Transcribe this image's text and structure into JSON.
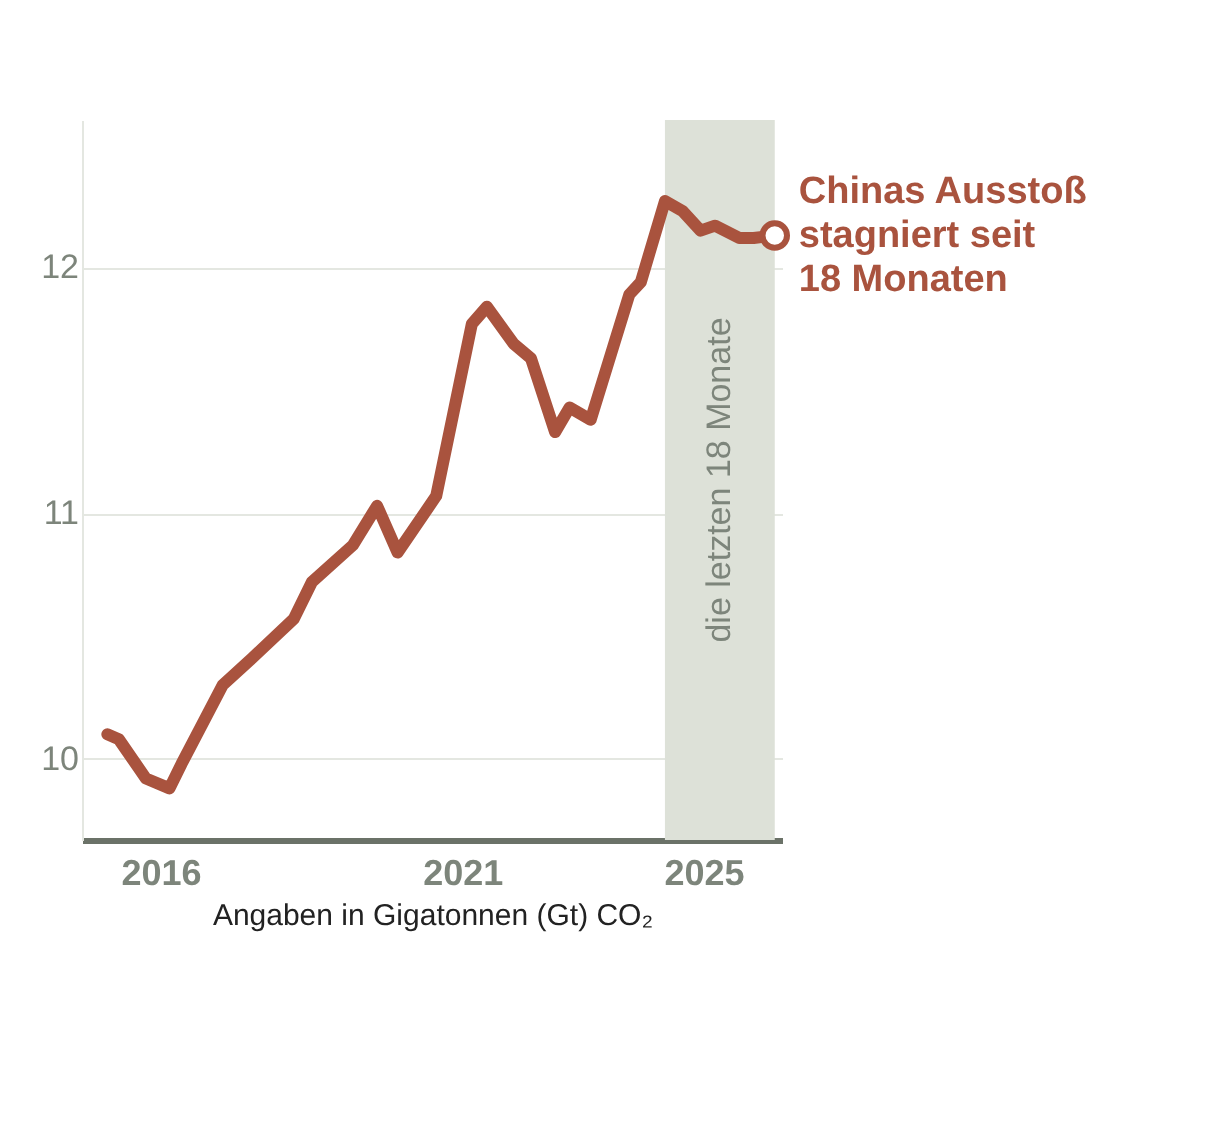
{
  "chart_data": {
    "type": "line",
    "xlabel": "Angaben in Gigatonnen (Gt) CO₂",
    "x": [
      2015.12,
      2015.31,
      2015.76,
      2016.15,
      2016.35,
      2017.03,
      2017.52,
      2018.21,
      2018.51,
      2019.19,
      2019.59,
      2019.93,
      2020.57,
      2021.16,
      2021.41,
      2021.85,
      2022.14,
      2022.54,
      2022.78,
      2023.13,
      2023.77,
      2023.96,
      2024.36,
      2024.65,
      2024.95,
      2025.19,
      2025.59,
      2025.83,
      2026.18
    ],
    "series": [
      {
        "color": "#a9533e",
        "values": [
          10.1,
          10.08,
          9.92,
          9.88,
          9.98,
          10.3,
          10.41,
          10.57,
          10.72,
          10.87,
          11.03,
          10.84,
          11.07,
          11.77,
          11.84,
          11.69,
          11.63,
          11.33,
          11.43,
          11.38,
          11.89,
          11.94,
          12.27,
          12.23,
          12.15,
          12.17,
          12.12,
          12.12,
          12.13
        ]
      }
    ],
    "xlim": [
      2014.7,
      2026.3
    ],
    "ylim": [
      9.67,
      12.6
    ],
    "xticks": [
      2016,
      2021,
      2025
    ],
    "yticks": [
      10,
      11,
      12
    ],
    "grid": "y",
    "line_style": "solid",
    "bands": [
      {
        "axis": "x",
        "from": 2024.36,
        "to": 2026.18,
        "label": "die letzten 18 Monate",
        "color": "#dde1d8"
      }
    ],
    "annotations": [
      {
        "text": "Chinas Ausstoß\nstagniert seit\n18 Monaten",
        "x": 2026.18,
        "y": 12.13
      }
    ]
  }
}
